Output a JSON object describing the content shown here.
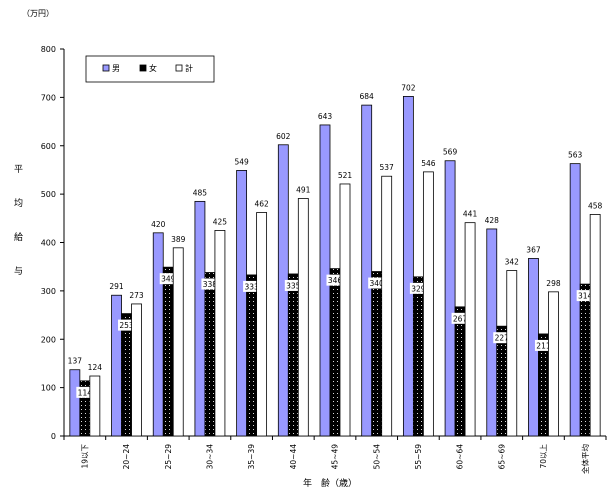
{
  "chart_data": {
    "type": "bar",
    "unit_label": "（万円）",
    "ylabel": "平均給与",
    "xlabel": "年　齢（歳）",
    "ylim": [
      0,
      800
    ],
    "yticks": [
      0,
      100,
      200,
      300,
      400,
      500,
      600,
      700,
      800
    ],
    "grid": false,
    "legend_position": "top-left",
    "categories": [
      "19以下",
      "20~24",
      "25~29",
      "30~34",
      "35~39",
      "40~44",
      "45~49",
      "50~54",
      "55~59",
      "60~64",
      "65~69",
      "70以上",
      "全体平均"
    ],
    "series": [
      {
        "name": "男",
        "color": "#9999ff",
        "values": [
          137,
          291,
          420,
          485,
          549,
          602,
          643,
          684,
          702,
          569,
          428,
          367,
          563
        ]
      },
      {
        "name": "女",
        "color": "#000000",
        "values": [
          114,
          253,
          349,
          338,
          333,
          335,
          346,
          340,
          329,
          267,
          227,
          211,
          314
        ]
      },
      {
        "name": "計",
        "color": "#ffffff",
        "values": [
          124,
          273,
          389,
          425,
          462,
          491,
          521,
          537,
          546,
          441,
          342,
          298,
          458
        ]
      }
    ]
  }
}
